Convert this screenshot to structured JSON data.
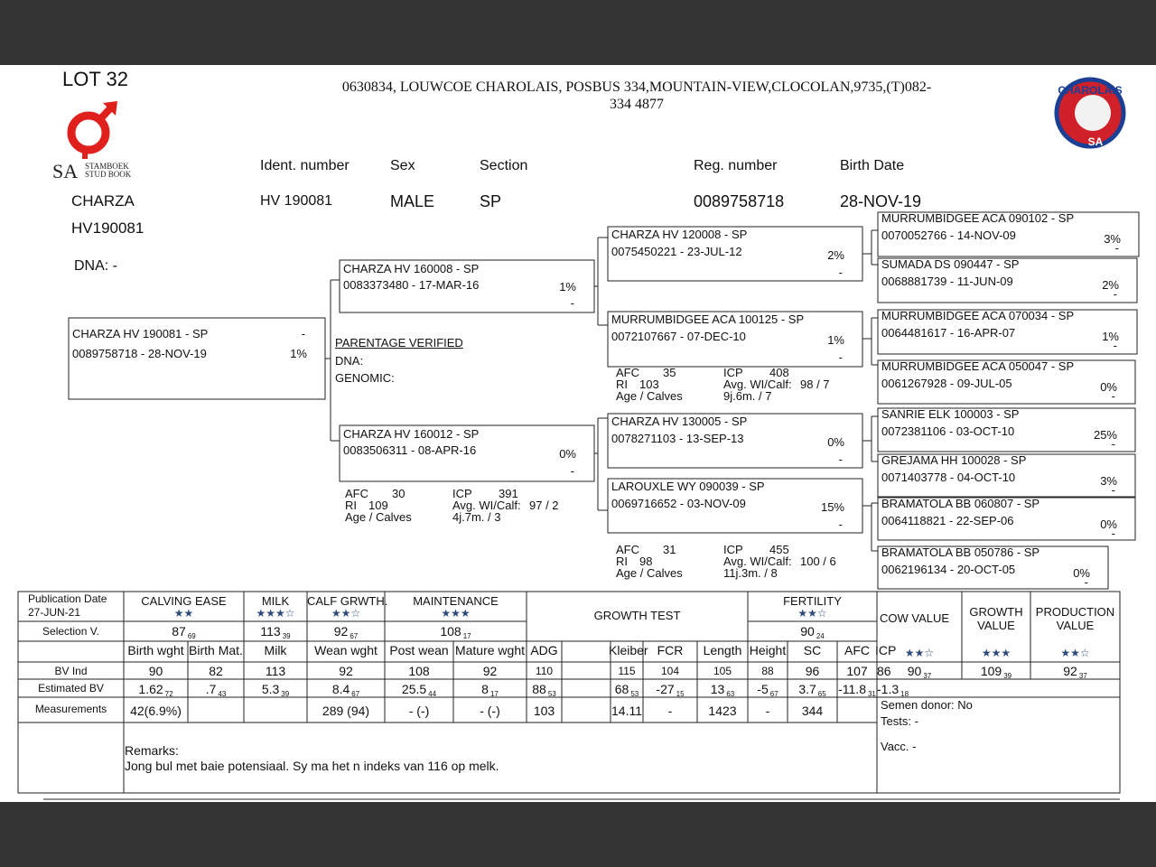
{
  "header": {
    "lot": "LOT 32",
    "logo_text": "SA",
    "logo_sub": [
      "STAMBOEK",
      "STUD BOOK"
    ],
    "address": [
      "0630834,  LOUWCOE CHAROLAIS, POSBUS 334,MOUNTAIN-VIEW,CLOCOLAN,9735,(T)082-",
      "334 4877"
    ],
    "badge": [
      "CHAROLAIS",
      "SA"
    ]
  },
  "animal": {
    "name": "CHARZA",
    "id": "HV190081",
    "dna": "DNA: -",
    "labels": [
      "Ident. number",
      "Sex",
      "Section",
      "Reg. number",
      "Birth Date"
    ],
    "values": [
      "HV  190081",
      "MALE",
      "SP",
      "0089758718",
      "28-NOV-19"
    ]
  },
  "pedigree": {
    "subject": {
      "name": "CHARZA HV  190081 - SP",
      "reg": "0089758718 -  28-NOV-19",
      "pct": "1%",
      "mark": "-"
    },
    "sire": {
      "name": "CHARZA HV  160008 - SP",
      "reg": "0083373480 - 17-MAR-16",
      "pct": "1%",
      "mark": "-"
    },
    "dam": {
      "name": "CHARZA HV  160012 - SP",
      "reg": "0083506311 - 08-APR-16",
      "pct": "0%",
      "mark": "-"
    },
    "gen3": [
      {
        "name": "CHARZA HV  120008 - SP",
        "reg": "0075450221 - 23-JUL-12",
        "pct": "2%",
        "mark": "-"
      },
      {
        "name": "MURRUMBIDGEE ACA 100125 - SP",
        "reg": "0072107667 - 07-DEC-10",
        "pct": "1%",
        "mark": "-"
      },
      {
        "name": "CHARZA HV  130005 - SP",
        "reg": "0078271103 - 13-SEP-13",
        "pct": "0%",
        "mark": "-"
      },
      {
        "name": "LAROUXLE WY  090039 - SP",
        "reg": "0069716652 - 03-NOV-09",
        "pct": "15%",
        "mark": "-"
      }
    ],
    "gen4": [
      {
        "name": "MURRUMBIDGEE ACA 090102 - SP",
        "reg": "0070052766 - 14-NOV-09",
        "pct": "3%",
        "mark": "-"
      },
      {
        "name": "SUMADA DS  090447 - SP",
        "reg": "0068881739 - 11-JUN-09",
        "pct": "2%",
        "mark": "-"
      },
      {
        "name": "MURRUMBIDGEE ACA 070034 - SP",
        "reg": "0064481617 - 16-APR-07",
        "pct": "1%",
        "mark": "-"
      },
      {
        "name": "MURRUMBIDGEE ACA 050047 - SP",
        "reg": "0061267928 - 09-JUL-05",
        "pct": "0%",
        "mark": "-"
      },
      {
        "name": "SANRIE ELK 100003 - SP",
        "reg": "0072381106 - 03-OCT-10",
        "pct": "25%",
        "mark": "-"
      },
      {
        "name": "GREJAMA HH  100028 - SP",
        "reg": "0071403778 - 04-OCT-10",
        "pct": "3%",
        "mark": "-"
      },
      {
        "name": "BRAMATOLA BB  060807 - SP",
        "reg": "0064118821 - 22-SEP-06",
        "pct": "0%",
        "mark": "-"
      },
      {
        "name": "BRAMATOLA BB  050786 - SP",
        "reg": "0062196134 - 20-OCT-05",
        "pct": "0%",
        "mark": "-"
      }
    ],
    "parentage": [
      "PARENTAGE VERIFIED",
      "DNA:",
      "GENOMIC:"
    ]
  },
  "performance": {
    "labels": [
      "AFC",
      "RI",
      "Age / Calves",
      "ICP",
      "Avg. WI/Calf:"
    ],
    "blocks": [
      {
        "afc": "35",
        "ri": "103",
        "age": "9j.6m. / 7",
        "icp": "408",
        "wi": "98 / 7"
      },
      {
        "afc": "30",
        "ri": "109",
        "age": "4j.7m. / 3",
        "icp": "391",
        "wi": "97 / 2"
      },
      {
        "afc": "31",
        "ri": "98",
        "age": "11j.3m. / 8",
        "icp": "455",
        "wi": "100 / 6"
      }
    ]
  },
  "table": {
    "pub_label": "Publication Date",
    "pub_date": "27-JUN-21",
    "groups": [
      {
        "name": "CALVING EASE",
        "stars": "★★",
        "sel": "87",
        "sub": "69"
      },
      {
        "name": "MILK",
        "stars": "★★★☆",
        "sel": "113",
        "sub": "39"
      },
      {
        "name": "CALF GRWTH.",
        "stars": "★★☆",
        "sel": "92",
        "sub": "67"
      },
      {
        "name": "MAINTENANCE",
        "stars": "★★★",
        "sel": "108",
        "sub": "17"
      }
    ],
    "growth_test": "GROWTH TEST",
    "fertility": {
      "name": "FERTILITY",
      "stars": "★★☆",
      "sel": "90",
      "sub": "24"
    },
    "indexes": [
      {
        "name": "COW VALUE",
        "stars": "★★☆",
        "bv": "90",
        "sub": "37"
      },
      {
        "name": "GROWTH VALUE",
        "stars": "★★★",
        "bv": "109",
        "sub": "39"
      },
      {
        "name": "PRODUCTION VALUE",
        "stars": "★★☆",
        "bv": "92",
        "sub": "37"
      }
    ],
    "row_labels": [
      "Selection V.",
      "BV Ind",
      "Estimated BV",
      "Measurements"
    ],
    "columns": [
      "Birth wght",
      "Birth Mat.",
      "Milk",
      "Wean wght",
      "Post wean",
      "Mature wght",
      "ADG",
      "Kleiber",
      "FCR",
      "Length",
      "Height",
      "SC",
      "AFC",
      "ICP"
    ],
    "bv_ind": [
      "90",
      "82",
      "113",
      "92",
      "108",
      "92",
      "110",
      "115",
      "104",
      "105",
      "88",
      "96",
      "107",
      "86"
    ],
    "est_bv": [
      {
        "v": "1.62",
        "sub": "72"
      },
      {
        "v": ".7",
        "sub": "43"
      },
      {
        "v": "5.3",
        "sub": "39"
      },
      {
        "v": "8.4",
        "sub": "67"
      },
      {
        "v": "25.5",
        "sub": "44"
      },
      {
        "v": "8",
        "sub": "17"
      },
      {
        "v": "88",
        "sub": "53"
      },
      {
        "v": "68",
        "sub": "53"
      },
      {
        "v": "-27",
        "sub": "15"
      },
      {
        "v": "13",
        "sub": "63"
      },
      {
        "v": "-5",
        "sub": "67"
      },
      {
        "v": "3.7",
        "sub": "65"
      },
      {
        "v": "-11.8",
        "sub": "31"
      },
      {
        "v": "-1.3",
        "sub": "18"
      }
    ],
    "measurements": [
      "42(6.9%)",
      null,
      null,
      "289  (94)",
      "-  (-)",
      "-  (-)",
      "103",
      "14.11",
      "-",
      "1423",
      "-",
      "344",
      null,
      null
    ],
    "notes": [
      "Semen donor: No",
      "Tests: -",
      "Vacc. -"
    ],
    "remarks_label": "Remarks:",
    "remarks": "Jong bul met baie potensiaal. Sy ma het n indeks van 116 op melk."
  }
}
